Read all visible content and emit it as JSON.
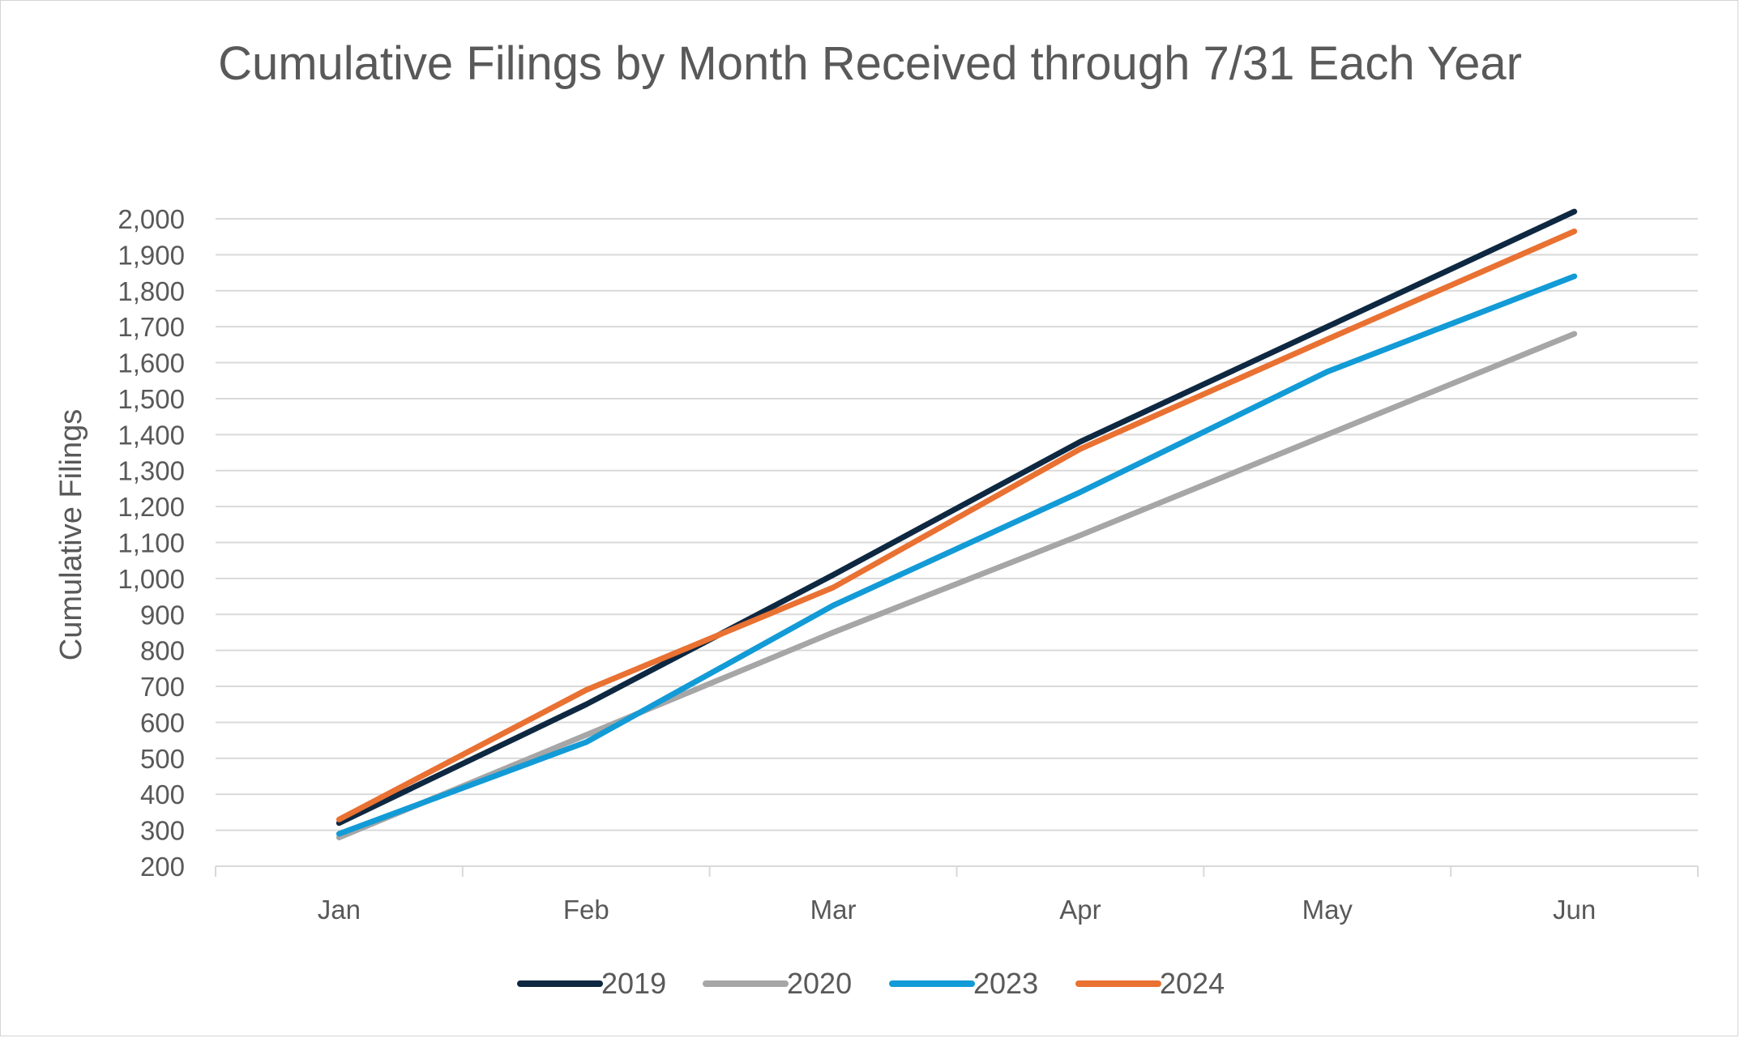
{
  "chart_data": {
    "type": "line",
    "title": "Cumulative Filings by Month Received through 7/31 Each Year",
    "xlabel": "",
    "ylabel": "Cumulative Filings",
    "categories": [
      "Jan",
      "Feb",
      "Mar",
      "Apr",
      "May",
      "Jun"
    ],
    "ylim": [
      200,
      2000
    ],
    "yticks": [
      200,
      300,
      400,
      500,
      600,
      700,
      800,
      900,
      1000,
      1100,
      1200,
      1300,
      1400,
      1500,
      1600,
      1700,
      1800,
      1900,
      2000
    ],
    "ytick_labels": [
      "200",
      "300",
      "400",
      "500",
      "600",
      "700",
      "800",
      "900",
      "1,000",
      "1,100",
      "1,200",
      "1,300",
      "1,400",
      "1,500",
      "1,600",
      "1,700",
      "1,800",
      "1,900",
      "2,000"
    ],
    "grid": true,
    "legend_position": "bottom",
    "series": [
      {
        "name": "2019",
        "color": "#0e2841",
        "values": [
          320,
          650,
          1010,
          1380,
          1700,
          2020
        ]
      },
      {
        "name": "2020",
        "color": "#a6a6a6",
        "values": [
          280,
          565,
          850,
          1120,
          1400,
          1680
        ]
      },
      {
        "name": "2023",
        "color": "#129bd6",
        "values": [
          290,
          545,
          925,
          1240,
          1575,
          1840
        ]
      },
      {
        "name": "2024",
        "color": "#e97132",
        "values": [
          330,
          690,
          975,
          1360,
          1665,
          1965
        ]
      }
    ]
  }
}
